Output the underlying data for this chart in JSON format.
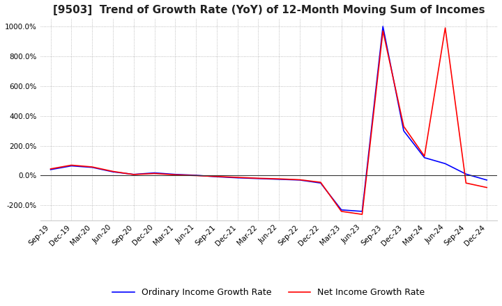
{
  "title": "[9503]  Trend of Growth Rate (YoY) of 12-Month Moving Sum of Incomes",
  "title_fontsize": 11,
  "xlabel": "",
  "ylabel": "",
  "ylim": [
    -300,
    1050
  ],
  "yticks": [
    -200,
    0,
    200,
    400,
    600,
    800,
    1000
  ],
  "background_color": "#ffffff",
  "plot_bg_color": "#ffffff",
  "grid_color": "#aaaaaa",
  "legend_labels": [
    "Ordinary Income Growth Rate",
    "Net Income Growth Rate"
  ],
  "legend_colors": [
    "#0000ff",
    "#ff0000"
  ],
  "dates": [
    "Sep-19",
    "Dec-19",
    "Mar-20",
    "Jun-20",
    "Sep-20",
    "Dec-20",
    "Mar-21",
    "Jun-21",
    "Sep-21",
    "Dec-21",
    "Mar-22",
    "Jun-22",
    "Sep-22",
    "Dec-22",
    "Mar-23",
    "Jun-23",
    "Sep-23",
    "Dec-23",
    "Mar-24",
    "Jun-24",
    "Sep-24",
    "Dec-24"
  ],
  "ordinary_income": [
    40,
    65,
    55,
    25,
    8,
    18,
    8,
    2,
    -8,
    -15,
    -20,
    -25,
    -30,
    -50,
    -230,
    -240,
    1000,
    300,
    120,
    80,
    10,
    -30
  ],
  "net_income": [
    45,
    70,
    58,
    28,
    7,
    14,
    5,
    0,
    -6,
    -12,
    -18,
    -22,
    -28,
    -45,
    -240,
    -260,
    970,
    330,
    130,
    990,
    -50,
    -80
  ]
}
